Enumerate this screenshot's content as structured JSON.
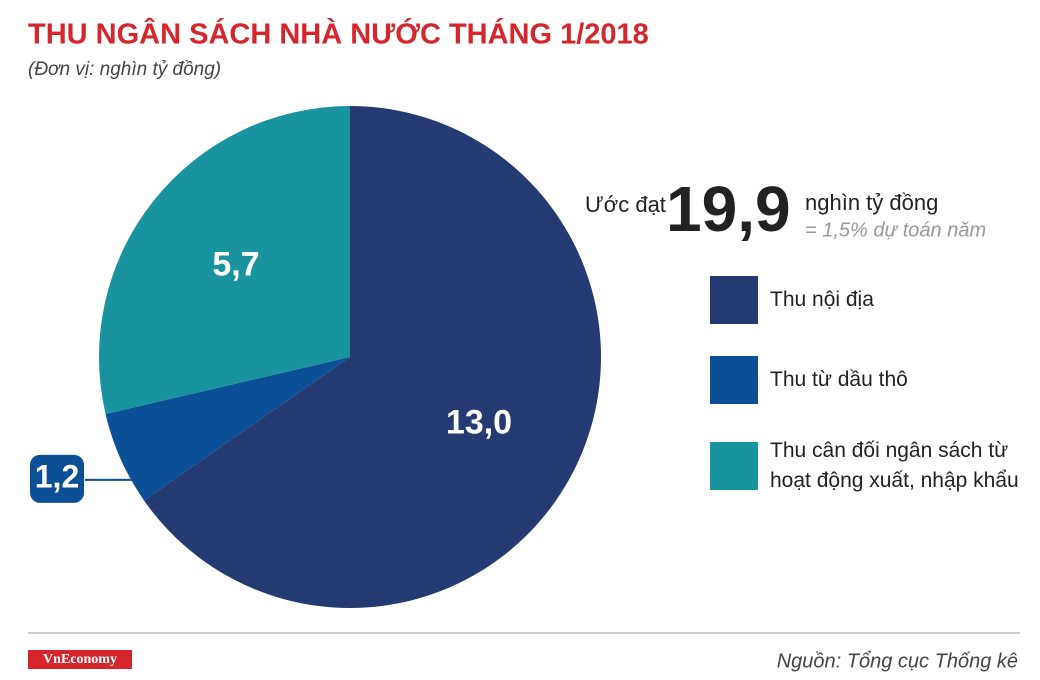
{
  "chart_data": {
    "type": "pie",
    "title": "THU NGÂN SÁCH NHÀ NƯỚC THÁNG 1/2018",
    "subtitle": "(Đơn vị: nghìn tỷ đồng)",
    "categories": [
      "Thu nội địa",
      "Thu từ dầu thô",
      "Thu cân đối ngân sách từ hoạt động xuất, nhập khẩu"
    ],
    "values": [
      13.0,
      1.2,
      5.7
    ],
    "value_labels": [
      "13,0",
      "1,2",
      "5,7"
    ],
    "colors": [
      "#253a73",
      "#0b4f96",
      "#1a93a0"
    ],
    "total": {
      "prefix": "Ước đạt",
      "value": 19.9,
      "label": "19,9",
      "unit": "nghìn tỷ đồng",
      "note": "= 1,5% dự toán năm"
    },
    "source": "Nguồn: Tổng cục Thống kê",
    "brand": "VnEconomy"
  }
}
